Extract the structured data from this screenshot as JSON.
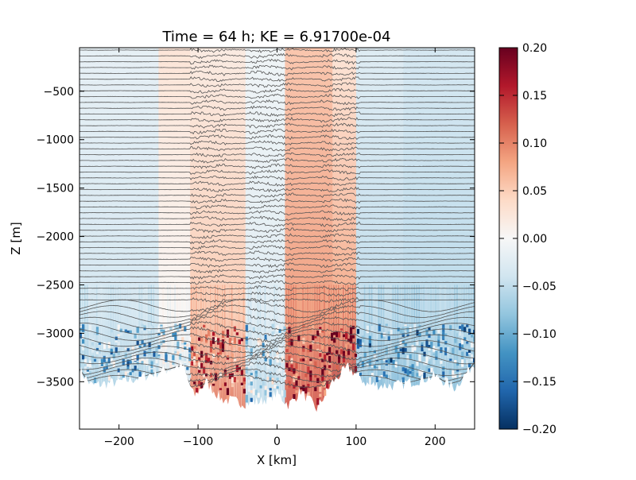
{
  "chart_data": {
    "type": "heatmap",
    "title": "Time = 64 h; KE = 6.91700e-04",
    "xlabel": "X [km]",
    "ylabel": "Z [m]",
    "xlim": [
      -250,
      250
    ],
    "ylim": [
      -3990,
      -50
    ],
    "x_ticks": [
      -200,
      -100,
      0,
      100,
      200
    ],
    "x_tick_labels": [
      "−200",
      "−100",
      "0",
      "100",
      "200"
    ],
    "y_ticks": [
      -500,
      -1000,
      -1500,
      -2000,
      -2500,
      -3000,
      -3500
    ],
    "y_tick_labels": [
      "−500",
      "−1000",
      "−1500",
      "−2000",
      "−2500",
      "−3000",
      "−3500"
    ],
    "colorbar": {
      "range": [
        -0.2,
        0.2
      ],
      "ticks": [
        0.2,
        0.15,
        0.1,
        0.05,
        0.0,
        -0.05,
        -0.1,
        -0.15,
        -0.2
      ],
      "tick_labels": [
        "0.20",
        "0.15",
        "0.10",
        "0.05",
        "0.00",
        "−0.05",
        "−0.10",
        "−0.15",
        "−0.20"
      ],
      "colormap": "RdBu_r",
      "colors": [
        "#053061",
        "#2166ac",
        "#4393c3",
        "#92c5de",
        "#d1e5f0",
        "#f7f7f7",
        "#fddbc7",
        "#f4a582",
        "#d6604d",
        "#b2182b",
        "#67001f"
      ]
    },
    "contours": {
      "color": "#555555",
      "spacing_m": 60,
      "count": 58,
      "wavy_band_km": [
        [
          -100,
          -75
        ],
        [
          -25,
          10
        ],
        [
          65,
          95
        ]
      ]
    },
    "bottom_topography": [
      {
        "x": -250,
        "z": -3370
      },
      {
        "x": -235,
        "z": -3540
      },
      {
        "x": -200,
        "z": -3500
      },
      {
        "x": -180,
        "z": -3470
      },
      {
        "x": -150,
        "z": -3400
      },
      {
        "x": -120,
        "z": -3330
      },
      {
        "x": -105,
        "z": -3650
      },
      {
        "x": -90,
        "z": -3500
      },
      {
        "x": -70,
        "z": -3680
      },
      {
        "x": -40,
        "z": -3720
      },
      {
        "x": -20,
        "z": -3700
      },
      {
        "x": 0,
        "z": -3620
      },
      {
        "x": 15,
        "z": -3740
      },
      {
        "x": 30,
        "z": -3590
      },
      {
        "x": 50,
        "z": -3780
      },
      {
        "x": 70,
        "z": -3500
      },
      {
        "x": 90,
        "z": -3350
      },
      {
        "x": 115,
        "z": -3530
      },
      {
        "x": 150,
        "z": -3540
      },
      {
        "x": 180,
        "z": -3480
      },
      {
        "x": 200,
        "z": -3440
      },
      {
        "x": 225,
        "z": -3560
      },
      {
        "x": 250,
        "z": -3300
      }
    ],
    "field_columns": [
      {
        "x_range": [
          -250,
          -150
        ],
        "surface": -0.02,
        "bottom": -0.08
      },
      {
        "x_range": [
          -150,
          -110
        ],
        "surface": 0.03,
        "bottom": -0.05
      },
      {
        "x_range": [
          -110,
          -40
        ],
        "surface": 0.02,
        "bottom": 0.12
      },
      {
        "x_range": [
          -40,
          10
        ],
        "surface": -0.01,
        "bottom": -0.06
      },
      {
        "x_range": [
          10,
          70
        ],
        "surface": 0.06,
        "bottom": 0.14
      },
      {
        "x_range": [
          70,
          100
        ],
        "surface": 0.03,
        "bottom": 0.18
      },
      {
        "x_range": [
          100,
          160
        ],
        "surface": -0.03,
        "bottom": -0.1
      },
      {
        "x_range": [
          160,
          250
        ],
        "surface": -0.04,
        "bottom": -0.09
      }
    ]
  }
}
